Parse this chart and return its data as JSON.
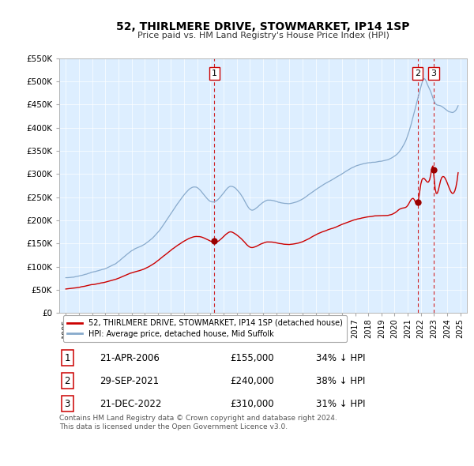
{
  "title": "52, THIRLMERE DRIVE, STOWMARKET, IP14 1SP",
  "subtitle": "Price paid vs. HM Land Registry's House Price Index (HPI)",
  "ylim": [
    0,
    550000
  ],
  "yticks": [
    0,
    50000,
    100000,
    150000,
    200000,
    250000,
    300000,
    350000,
    400000,
    450000,
    500000,
    550000
  ],
  "ytick_labels": [
    "£0",
    "£50K",
    "£100K",
    "£150K",
    "£200K",
    "£250K",
    "£300K",
    "£350K",
    "£400K",
    "£450K",
    "£500K",
    "£550K"
  ],
  "transactions": [
    {
      "date": "21-APR-2006",
      "price": 155000,
      "year": 2006.3,
      "label": "1",
      "hpi_diff": "34% ↓ HPI"
    },
    {
      "date": "29-SEP-2021",
      "price": 240000,
      "year": 2021.75,
      "label": "2",
      "hpi_diff": "38% ↓ HPI"
    },
    {
      "date": "21-DEC-2022",
      "price": 310000,
      "year": 2022.97,
      "label": "3",
      "hpi_diff": "31% ↓ HPI"
    }
  ],
  "red_line_color": "#cc0000",
  "blue_line_color": "#88aacc",
  "plot_bg_color": "#ddeeff",
  "transaction_dot_color": "#990000",
  "vline_color": "#cc0000",
  "legend_label_red": "52, THIRLMERE DRIVE, STOWMARKET, IP14 1SP (detached house)",
  "legend_label_blue": "HPI: Average price, detached house, Mid Suffolk",
  "footer": "Contains HM Land Registry data © Crown copyright and database right 2024.\nThis data is licensed under the Open Government Licence v3.0.",
  "xlim_left": 1995.0,
  "xlim_right": 2025.5
}
